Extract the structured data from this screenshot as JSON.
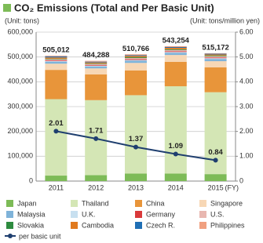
{
  "chart_data": {
    "type": "stacked-bar-line",
    "title": "CO₂ Emissions (Total and Per Basic Unit)",
    "y_label": "(Unit: tons)",
    "y2_label": "(Unit: tons/million yen)",
    "x_unit": "(FY)",
    "categories": [
      "2011",
      "2012",
      "2013",
      "2014",
      "2015"
    ],
    "series": [
      {
        "name": "Japan",
        "color": "#7dbb57",
        "values": [
          22000,
          24000,
          30000,
          30000,
          28000
        ]
      },
      {
        "name": "Thailand",
        "color": "#d4e6b5",
        "values": [
          308000,
          302000,
          316000,
          352000,
          330000
        ]
      },
      {
        "name": "China",
        "color": "#e8953a",
        "values": [
          118000,
          104000,
          100000,
          98000,
          100000
        ]
      },
      {
        "name": "Singapore",
        "color": "#f7d7b5",
        "values": [
          25000,
          24000,
          30000,
          28000,
          25000
        ]
      },
      {
        "name": "Malaysia",
        "color": "#7fb3d9",
        "values": [
          8000,
          8000,
          9000,
          9000,
          9000
        ]
      },
      {
        "name": "U.K.",
        "color": "#c8e0f0",
        "values": [
          3000,
          3000,
          3000,
          3000,
          3000
        ]
      },
      {
        "name": "Germany",
        "color": "#d9393a",
        "values": [
          3000,
          3000,
          3000,
          3000,
          3000
        ]
      },
      {
        "name": "U.S.",
        "color": "#e8b7b0",
        "values": [
          4000,
          4000,
          5000,
          5000,
          5000
        ]
      },
      {
        "name": "Slovakia",
        "color": "#2e8b3f",
        "values": [
          2000,
          2000,
          3000,
          3000,
          3000
        ]
      },
      {
        "name": "Cambodia",
        "color": "#e07a1f",
        "values": [
          5000,
          4000,
          5000,
          6000,
          4000
        ]
      },
      {
        "name": "Czech R.",
        "color": "#1f6fb5",
        "values": [
          4000,
          3000,
          3000,
          3000,
          3000
        ]
      },
      {
        "name": "Philippines",
        "color": "#f0a080",
        "values": [
          3012,
          3288,
          3766,
          3254,
          2172
        ]
      }
    ],
    "totals": {
      "values": [
        505012,
        484288,
        510766,
        543254,
        515172
      ],
      "value_labels": [
        "505,012",
        "484,288",
        "510,766",
        "543,254",
        "515,172"
      ]
    },
    "line": {
      "name": "per basic unit",
      "color": "#1f3f6f",
      "axis": "y2",
      "values": [
        2.01,
        1.71,
        1.37,
        1.09,
        0.84
      ]
    },
    "ylim": [
      0,
      600000
    ],
    "yticks": [
      0,
      {
        "value": 100000,
        "label": "100,000"
      },
      {
        "value": 200000,
        "label": "200,000"
      },
      {
        "value": 300000,
        "label": "300,000"
      },
      {
        "value": 400000,
        "label": "400,000"
      },
      {
        "value": 500000,
        "label": "500,000"
      },
      {
        "value": 600000,
        "label": "600,000"
      }
    ],
    "y2lim": [
      0,
      6
    ],
    "y2ticks": [
      0,
      {
        "value": 1,
        "label": "1.00"
      },
      {
        "value": 2,
        "label": "2.00"
      },
      {
        "value": 3,
        "label": "3.00"
      },
      {
        "value": 4,
        "label": "4.00"
      },
      {
        "value": 5,
        "label": "5.00"
      },
      {
        "value": 6,
        "label": "6.00"
      }
    ],
    "grid": true
  }
}
